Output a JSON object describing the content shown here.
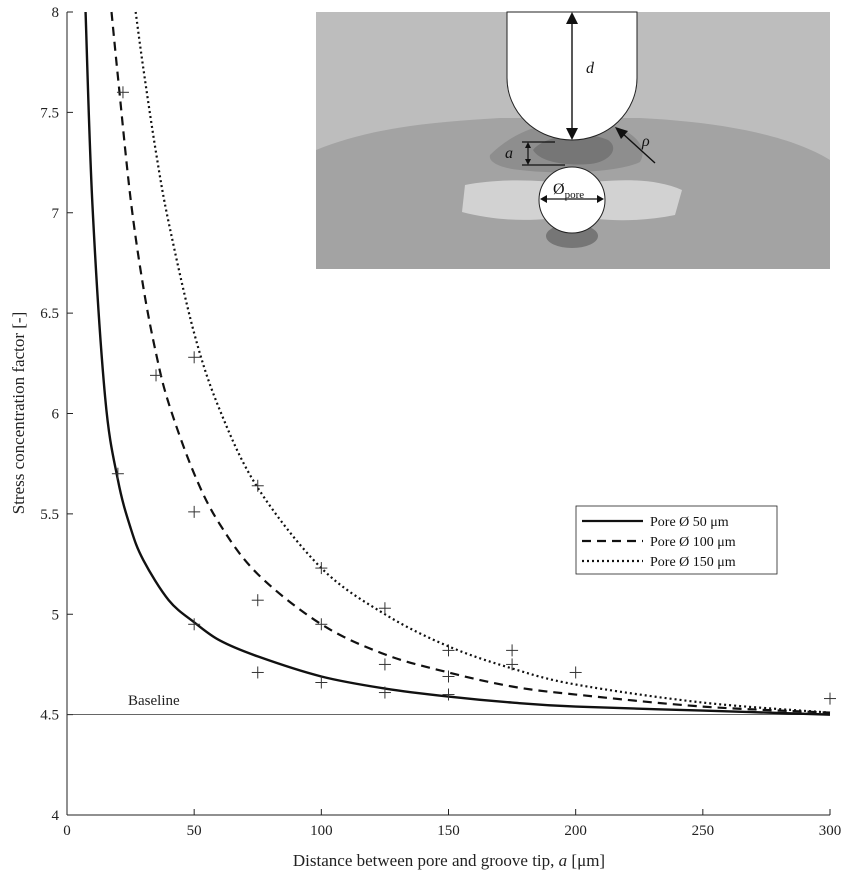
{
  "chart_data": {
    "type": "line",
    "title": "",
    "xlabel_main": "Distance between pore and groove tip, ",
    "xlabel_var": "a",
    "xlabel_unit": " [μm]",
    "ylabel": "Stress concentration factor [-]",
    "xlim": [
      0,
      300
    ],
    "ylim": [
      4,
      8
    ],
    "x_ticks": [
      0,
      50,
      100,
      150,
      200,
      250,
      300
    ],
    "y_ticks": [
      4,
      4.5,
      5,
      5.5,
      6,
      6.5,
      7,
      7.5,
      8
    ],
    "x_tick_labels": [
      "0",
      "50",
      "100",
      "150",
      "200",
      "250",
      "300"
    ],
    "y_tick_labels": [
      "4",
      "4.5",
      "5",
      "5.5",
      "6",
      "6.5",
      "7",
      "7.5",
      "8"
    ],
    "grid": false,
    "legend_position": "right-middle",
    "baseline": {
      "value": 4.5,
      "label": "Baseline"
    },
    "series": [
      {
        "name": "Pore Ø 50 μm",
        "style": "solid",
        "curve": {
          "x": [
            7.3,
            10,
            15,
            20,
            25,
            30,
            40,
            50,
            60,
            75,
            100,
            125,
            150,
            175,
            200,
            250,
            300
          ],
          "y": [
            8.0,
            7.04,
            6.08,
            5.67,
            5.43,
            5.27,
            5.07,
            4.96,
            4.87,
            4.79,
            4.69,
            4.63,
            4.59,
            4.56,
            4.54,
            4.52,
            4.5
          ]
        },
        "markers": {
          "x": [
            20,
            50,
            75,
            100,
            125,
            150
          ],
          "y": [
            5.7,
            4.95,
            4.71,
            4.66,
            4.61,
            4.6
          ]
        }
      },
      {
        "name": "Pore Ø 100 μm",
        "style": "dashed",
        "curve": {
          "x": [
            17.5,
            20,
            25,
            30,
            35,
            40,
            50,
            60,
            75,
            100,
            125,
            150,
            175,
            200,
            250,
            300
          ],
          "y": [
            8.0,
            7.68,
            7.07,
            6.63,
            6.3,
            6.05,
            5.7,
            5.45,
            5.2,
            4.95,
            4.8,
            4.71,
            4.64,
            4.6,
            4.54,
            4.51
          ]
        },
        "markers": {
          "x": [
            22,
            35,
            50,
            75,
            100,
            125,
            150,
            175,
            300
          ],
          "y": [
            7.6,
            6.19,
            5.51,
            5.07,
            4.95,
            4.75,
            4.69,
            4.75,
            4.58
          ]
        }
      },
      {
        "name": "Pore Ø 150 μm",
        "style": "dotted",
        "curve": {
          "x": [
            27,
            30,
            35,
            40,
            50,
            60,
            75,
            100,
            125,
            150,
            175,
            200,
            250,
            300
          ],
          "y": [
            8.0,
            7.72,
            7.3,
            6.95,
            6.4,
            6.02,
            5.63,
            5.23,
            5.0,
            4.84,
            4.73,
            4.65,
            4.56,
            4.51
          ]
        },
        "markers": {
          "x": [
            50,
            75,
            100,
            125,
            150,
            175,
            200
          ],
          "y": [
            6.28,
            5.64,
            5.23,
            5.03,
            4.82,
            4.82,
            4.71
          ]
        }
      }
    ]
  },
  "inset": {
    "label_d": "d",
    "label_rho": "ρ",
    "label_a": "a",
    "label_pore_symbol": "Ø",
    "label_pore_sub": "pore",
    "colors": {
      "background": "#bdbdbd",
      "band": "#a3a3a3",
      "mid": "#8e8e8e",
      "dark": "#767676",
      "light_band": "#d2d2d2",
      "white": "#ffffff"
    }
  }
}
